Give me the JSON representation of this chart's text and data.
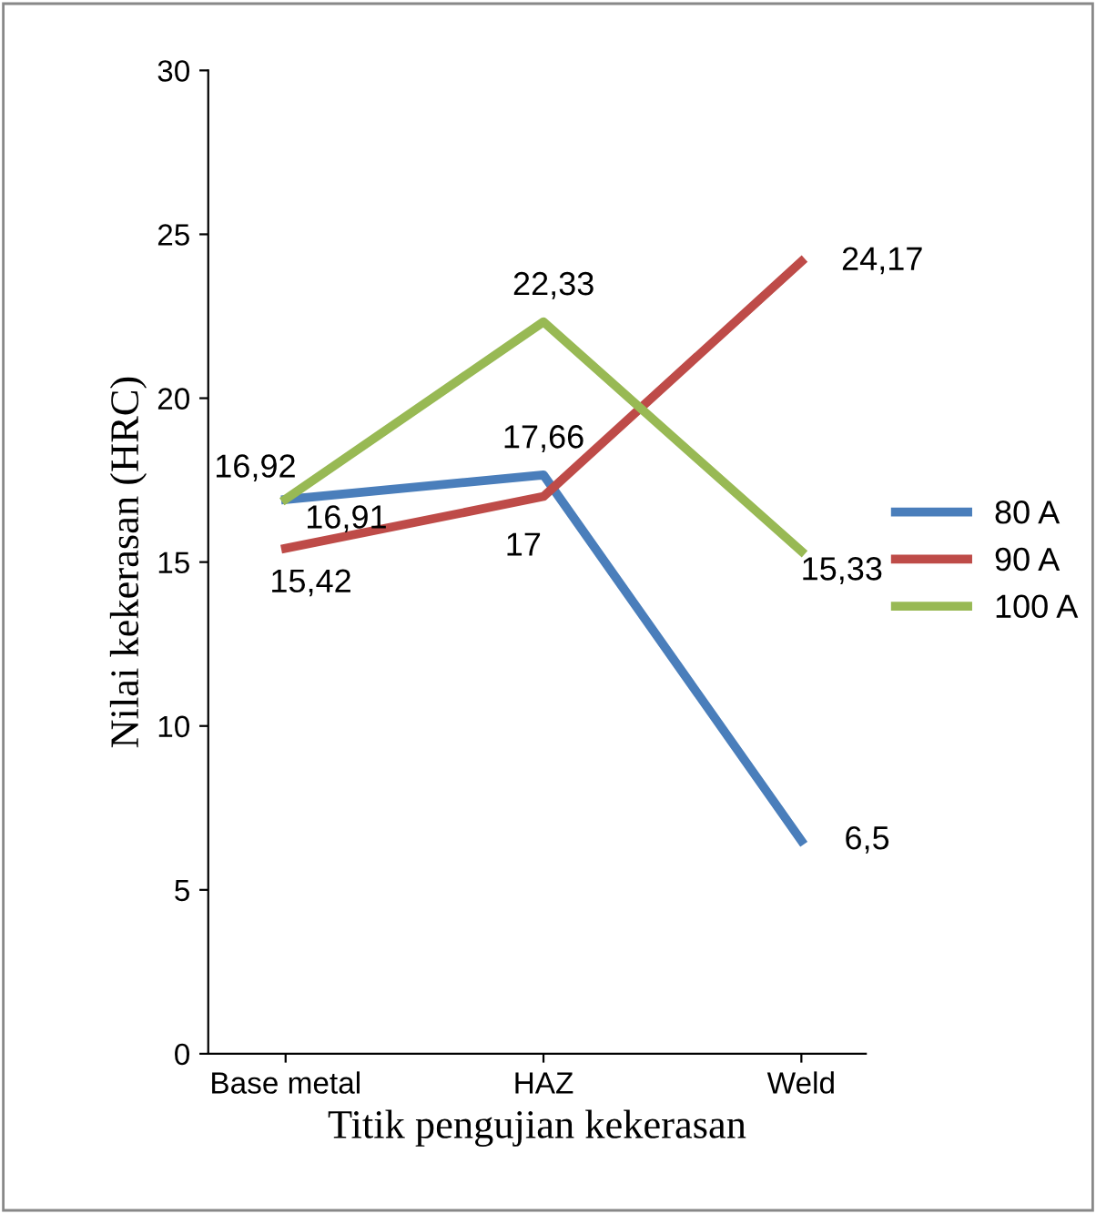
{
  "chart_data": {
    "type": "line",
    "xlabel": "Titik pengujian kekerasan",
    "ylabel": "Nilai kekerasan (HRC)",
    "categories": [
      "Base metal",
      "HAZ",
      "Weld"
    ],
    "series": [
      {
        "name": "80 A",
        "color": "#4a7ebb",
        "values": [
          16.91,
          17.66,
          6.5
        ],
        "value_labels": [
          "16,91",
          "17,66",
          "6,5"
        ]
      },
      {
        "name": "90 A",
        "color": "#be4b48",
        "values": [
          15.42,
          17,
          24.17
        ],
        "value_labels": [
          "15,42",
          "17",
          "24,17"
        ]
      },
      {
        "name": "100 A",
        "color": "#98b954",
        "values": [
          16.92,
          22.33,
          15.33
        ],
        "value_labels": [
          "16,92",
          "22,33",
          "15,33"
        ]
      }
    ],
    "ylim": [
      0,
      30
    ],
    "yticks": [
      0,
      5,
      10,
      15,
      20,
      25,
      30
    ],
    "grid": false,
    "legend": "right",
    "marker": "none",
    "line_style": "solid"
  }
}
